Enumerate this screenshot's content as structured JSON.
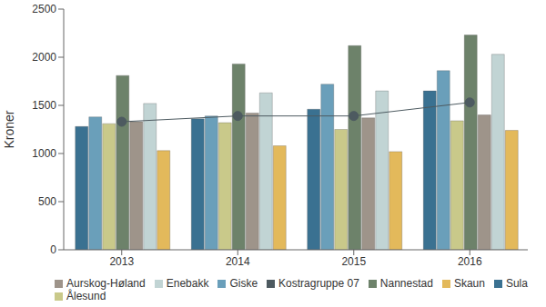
{
  "chart_data": {
    "type": "bar",
    "y_label": "Kroner",
    "categories": [
      "2013",
      "2014",
      "2015",
      "2016"
    ],
    "ylim": [
      0,
      2500
    ],
    "yticks": [
      0,
      500,
      1000,
      1500,
      2000,
      2500
    ],
    "grid": false,
    "legend": "bottom",
    "series": [
      {
        "name": "Sula",
        "color": "#3a7191",
        "values": [
          1280,
          1360,
          1460,
          1650
        ]
      },
      {
        "name": "Giske",
        "color": "#6a9fba",
        "values": [
          1380,
          1390,
          1720,
          1860
        ]
      },
      {
        "name": "Ålesund",
        "color": "#c9c98a",
        "values": [
          1310,
          1320,
          1250,
          1340
        ]
      },
      {
        "name": "Nannestad",
        "color": "#6d826a",
        "values": [
          1810,
          1930,
          2120,
          2230
        ]
      },
      {
        "name": "Aurskog-Høland",
        "color": "#9e948a",
        "values": [
          1330,
          1420,
          1370,
          1400
        ]
      },
      {
        "name": "Enebakk",
        "color": "#c1d4d4",
        "values": [
          1520,
          1630,
          1650,
          2030
        ]
      },
      {
        "name": "Skaun",
        "color": "#e3b95b",
        "values": [
          1030,
          1080,
          1020,
          1240
        ]
      },
      {
        "name": "Kostragruppe 07",
        "color": "#4d5a60",
        "type": "line",
        "marker": "circle",
        "values": [
          1330,
          1390,
          1390,
          1530
        ]
      }
    ]
  }
}
